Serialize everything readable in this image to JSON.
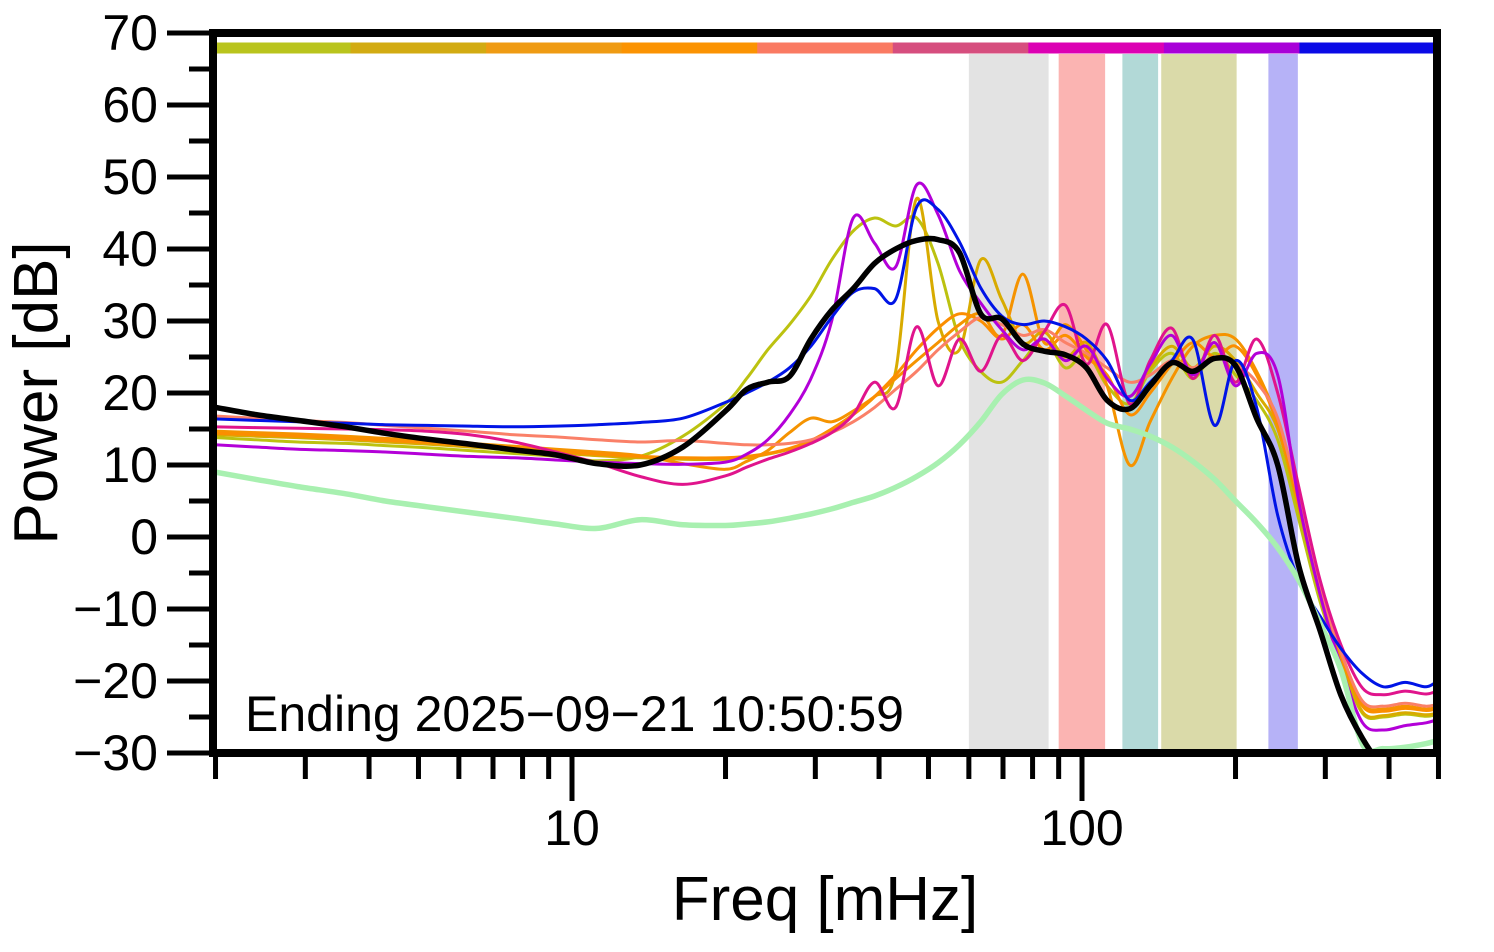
{
  "annotation": {
    "text": "Ending 2025−09−21 10:50:59"
  },
  "axes": {
    "x": {
      "label": "Freq [mHz]",
      "scale": "log",
      "min": 2,
      "max": 500,
      "major_ticks": [
        10,
        100
      ],
      "major_tick_labels": [
        "10",
        "100"
      ],
      "minor_ticks": [
        2,
        3,
        4,
        5,
        6,
        7,
        8,
        9,
        20,
        30,
        40,
        50,
        60,
        70,
        80,
        90,
        200,
        300,
        400,
        500
      ]
    },
    "y": {
      "label": "Power [dB]",
      "min": -30,
      "max": 70,
      "major_ticks": [
        70,
        60,
        50,
        40,
        30,
        20,
        10,
        0,
        -10,
        -20,
        -30
      ],
      "major_tick_labels": [
        "70",
        "60",
        "50",
        "40",
        "30",
        "20",
        "10",
        "0",
        "−10",
        "−20",
        "−30"
      ],
      "minor_step": 5
    }
  },
  "chart_data": {
    "type": "line",
    "xlabel": "Freq [mHz]",
    "ylabel": "Power [dB]",
    "xlim": [
      2,
      500
    ],
    "ylim": [
      -30,
      70
    ],
    "grid": false,
    "legend": "none",
    "top_bar": {
      "description": "time-segment color bar, 9 equal segments",
      "colors": [
        "#b9c41d",
        "#d2ab12",
        "#ef9b13",
        "#fb9302",
        "#fa7a62",
        "#d64e7e",
        "#dc00b3",
        "#a800d8",
        "#0a0ae6"
      ]
    },
    "bands": [
      {
        "name": "band-gray",
        "f1": 60,
        "f2": 86,
        "color": "#e3e3e3"
      },
      {
        "name": "band-pink",
        "f1": 90,
        "f2": 111,
        "color": "#fbb4b2"
      },
      {
        "name": "band-teal",
        "f1": 120,
        "f2": 141,
        "color": "#b2d9d7"
      },
      {
        "name": "band-olive",
        "f1": 143,
        "f2": 201,
        "color": "#dadaa9"
      },
      {
        "name": "band-periwinkle",
        "f1": 232,
        "f2": 265,
        "color": "#b6b2f7"
      }
    ],
    "x": [
      2,
      2.4,
      2.9,
      3.6,
      4.3,
      5.2,
      6.3,
      7.7,
      9.3,
      11.2,
      13.6,
      16.5,
      20,
      22,
      24.2,
      26.7,
      29.4,
      32.3,
      35.6,
      39.2,
      43.1,
      47.4,
      52.2,
      57.5,
      63.3,
      69.6,
      76.6,
      84.3,
      92.8,
      102,
      112,
      124,
      136,
      150,
      165,
      182,
      200,
      220,
      242,
      266,
      293,
      322,
      355,
      390,
      430,
      473,
      500
    ],
    "series": [
      {
        "name": "segment-olive",
        "color": "#bcc210",
        "width": 3,
        "values": [
          13.8,
          13.5,
          13.2,
          13.0,
          12.7,
          12.4,
          12.0,
          11.6,
          11.2,
          10.6,
          11.2,
          14.0,
          18.5,
          22,
          26,
          29.5,
          33.5,
          38.5,
          42.5,
          44.3,
          43.2,
          44.3,
          38,
          27.5,
          23,
          21.5,
          24.5,
          27.5,
          23.5,
          25.5,
          21,
          18.5,
          23,
          25.5,
          22,
          25.5,
          22.5,
          19,
          13.5,
          2.5,
          -9,
          -17.5,
          -24.5,
          -25,
          -24.6,
          -24.9,
          -24.6
        ]
      },
      {
        "name": "segment-gold",
        "color": "#d8ab00",
        "width": 3,
        "values": [
          14.2,
          14.0,
          13.8,
          13.5,
          13.2,
          12.9,
          12.5,
          12.1,
          11.7,
          11.3,
          11.0,
          10.8,
          10.8,
          11.0,
          11.5,
          12.2,
          13.3,
          15,
          17,
          19.5,
          23,
          47,
          30,
          26,
          38.5,
          33,
          27,
          28.5,
          25,
          27,
          22,
          19.5,
          23.5,
          26.5,
          23.5,
          26.5,
          24.5,
          20,
          15,
          4,
          -8,
          -17,
          -24.3,
          -24.8,
          -24.4,
          -24.7,
          -24.4
        ]
      },
      {
        "name": "segment-orange",
        "color": "#f59300",
        "width": 3,
        "values": [
          14.7,
          14.5,
          14.3,
          14.0,
          13.7,
          13.4,
          13.0,
          12.6,
          12.2,
          11.8,
          11.3,
          10.2,
          9.4,
          10.5,
          12,
          14.5,
          16.5,
          16,
          17.5,
          19.5,
          22,
          24.5,
          27,
          29.5,
          31,
          28,
          36.5,
          27,
          29.5,
          26,
          21,
          10,
          16,
          22,
          26.5,
          28,
          27.5,
          23,
          16,
          5,
          -7,
          -16,
          -23.2,
          -23.9,
          -23.5,
          -23.9,
          -23.6
        ]
      },
      {
        "name": "segment-dark-orange",
        "color": "#fb8e00",
        "width": 3,
        "values": [
          14.4,
          14.2,
          14.0,
          13.7,
          13.4,
          13.1,
          12.7,
          12.3,
          11.9,
          11.5,
          11.2,
          11.0,
          11.0,
          11.2,
          11.6,
          12.3,
          13.4,
          15,
          17,
          19.5,
          22.5,
          26,
          29,
          31,
          30,
          27.5,
          29.5,
          26,
          28,
          25,
          22.5,
          17,
          20,
          24,
          27,
          25,
          26.5,
          22.5,
          15.5,
          4.5,
          -7.5,
          -16.5,
          -23.5,
          -24.2,
          -23.8,
          -24.1,
          -23.8
        ]
      },
      {
        "name": "segment-salmon",
        "color": "#fa8068",
        "width": 3,
        "values": [
          16.8,
          16.5,
          16.2,
          15.9,
          15.5,
          15.1,
          14.7,
          14.2,
          13.9,
          13.5,
          13.2,
          13.4,
          13.0,
          12.8,
          12.8,
          13.0,
          13.5,
          14.5,
          16,
          18,
          20.5,
          23,
          26,
          28.5,
          30.5,
          29.5,
          28,
          28.8,
          27,
          25.5,
          23.5,
          21.5,
          22.5,
          24.5,
          23.5,
          25,
          24,
          21.5,
          16.5,
          5.5,
          -7,
          -16,
          -22.8,
          -23.5,
          -23.1,
          -23.5,
          -23.2
        ]
      },
      {
        "name": "segment-raspberry",
        "color": "#e0148c",
        "width": 3,
        "values": [
          15.3,
          15.2,
          15.1,
          15.0,
          14.9,
          14.7,
          14.2,
          13.2,
          11.8,
          10.3,
          8.4,
          7.3,
          8.5,
          9.7,
          10.8,
          11.8,
          13,
          14.5,
          17,
          21.5,
          18,
          29.2,
          21,
          27.5,
          23,
          28,
          24.5,
          28.5,
          32.2,
          24,
          29.5,
          18.5,
          24.5,
          29,
          22,
          28,
          21.5,
          27.5,
          20,
          7,
          -6,
          -15,
          -21,
          -21.9,
          -21.4,
          -21.8,
          -21.3
        ]
      },
      {
        "name": "segment-purple",
        "color": "#b300d8",
        "width": 3,
        "values": [
          12.8,
          12.5,
          12.2,
          12.0,
          11.8,
          11.5,
          11.2,
          11.0,
          10.7,
          10.4,
          10.2,
          10.1,
          10.4,
          11.5,
          13.5,
          17,
          22,
          30,
          44.3,
          40.8,
          37.5,
          48.9,
          44.8,
          37,
          32.5,
          28.8,
          26,
          27.5,
          24.5,
          26.5,
          22,
          19.5,
          24,
          28,
          22.5,
          27,
          21,
          25.5,
          22.5,
          5,
          -8,
          -18,
          -25.8,
          -26.8,
          -26.2,
          -25.8,
          -25.3
        ]
      },
      {
        "name": "segment-blue",
        "color": "#0014e6",
        "width": 3,
        "values": [
          16.4,
          16.2,
          16.0,
          15.8,
          15.6,
          15.5,
          15.4,
          15.3,
          15.4,
          15.6,
          15.9,
          16.5,
          18.7,
          20,
          21.5,
          23.5,
          26.5,
          30.5,
          34,
          34.5,
          33,
          45.8,
          45.5,
          41,
          34.6,
          30.7,
          29.5,
          30,
          29.2,
          27.5,
          24.5,
          19,
          21.5,
          24.5,
          27.4,
          15.5,
          24.5,
          18,
          3,
          -6,
          -11,
          -15.5,
          -19,
          -20.8,
          -20.2,
          -20.8,
          -19.9
        ]
      },
      {
        "name": "reference-green",
        "color": "#a8f0b0",
        "width": 5.5,
        "values": [
          9,
          8,
          7,
          6,
          5,
          4.2,
          3.4,
          2.6,
          1.8,
          1.2,
          2.4,
          1.7,
          1.6,
          1.8,
          2.1,
          2.6,
          3.2,
          3.9,
          4.8,
          5.7,
          6.9,
          8.4,
          10.3,
          12.8,
          16,
          19.8,
          21.8,
          21.4,
          19.6,
          17.6,
          15.8,
          15,
          14,
          12.5,
          10.5,
          8,
          5,
          2,
          -1.5,
          -6,
          -12,
          -18.5,
          -28.8,
          -29.4,
          -29.2,
          -28.7,
          -28.2
        ]
      },
      {
        "name": "average-black",
        "color": "#000000",
        "width": 5.5,
        "values": [
          18,
          17,
          16.2,
          15.3,
          14.4,
          13.6,
          12.9,
          12.1,
          11.4,
          10.2,
          10.0,
          12.5,
          17.5,
          20.5,
          21.5,
          22.3,
          27.5,
          31.5,
          34.5,
          38,
          40,
          41.2,
          41.3,
          39.5,
          31,
          30.3,
          26.8,
          25.8,
          25.3,
          23.5,
          19,
          17.8,
          21,
          24.2,
          23,
          24.8,
          23.8,
          16.5,
          10,
          -4,
          -13,
          -22,
          -28,
          -32,
          -34,
          -34,
          -34
        ]
      }
    ]
  }
}
